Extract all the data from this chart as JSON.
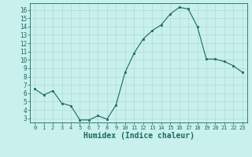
{
  "x": [
    0,
    1,
    2,
    3,
    4,
    5,
    6,
    7,
    8,
    9,
    10,
    11,
    12,
    13,
    14,
    15,
    16,
    17,
    18,
    19,
    20,
    21,
    22,
    23
  ],
  "y": [
    6.5,
    5.8,
    6.3,
    4.8,
    4.5,
    2.8,
    2.8,
    3.3,
    2.9,
    4.6,
    8.5,
    10.8,
    12.5,
    13.5,
    14.2,
    15.5,
    16.3,
    16.1,
    14.0,
    10.1,
    10.1,
    9.8,
    9.3,
    8.5
  ],
  "xlabel": "Humidex (Indice chaleur)",
  "xlim": [
    -0.5,
    23.5
  ],
  "ylim": [
    2.5,
    16.8
  ],
  "yticks": [
    3,
    4,
    5,
    6,
    7,
    8,
    9,
    10,
    11,
    12,
    13,
    14,
    15,
    16
  ],
  "xticks": [
    0,
    1,
    2,
    3,
    4,
    5,
    6,
    7,
    8,
    9,
    10,
    11,
    12,
    13,
    14,
    15,
    16,
    17,
    18,
    19,
    20,
    21,
    22,
    23
  ],
  "line_color": "#1a6b5e",
  "marker_color": "#1a6b5e",
  "bg_color": "#c8f0ec",
  "grid_color": "#b0d8d4",
  "axis_label_color": "#1a6b5e",
  "tick_color": "#1a6b5e",
  "xlabel_fontsize": 7,
  "ytick_fontsize": 5.5,
  "xtick_fontsize": 5.0
}
